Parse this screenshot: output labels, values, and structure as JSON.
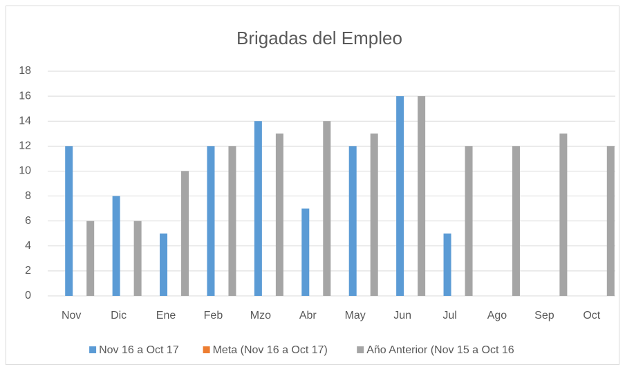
{
  "chart_data": {
    "type": "bar",
    "title": "Brigadas del Empleo",
    "categories": [
      "Nov",
      "Dic",
      "Ene",
      "Feb",
      "Mzo",
      "Abr",
      "May",
      "Jun",
      "Jul",
      "Ago",
      "Sep",
      "Oct"
    ],
    "series": [
      {
        "name": "Nov 16 a Oct 17",
        "color": "#5b9bd5",
        "values": [
          12,
          8,
          5,
          12,
          14,
          7,
          12,
          16,
          5,
          null,
          null,
          null
        ]
      },
      {
        "name": "Meta (Nov 16 a Oct 17)",
        "color": "#ed7d31",
        "values": [
          null,
          null,
          null,
          null,
          null,
          null,
          null,
          null,
          null,
          null,
          null,
          null
        ]
      },
      {
        "name": "Año Anterior (Nov 15 a Oct 16",
        "color": "#a5a5a5",
        "values": [
          6,
          6,
          10,
          12,
          13,
          14,
          13,
          16,
          12,
          12,
          13,
          12
        ]
      }
    ],
    "ylim": [
      0,
      18
    ],
    "yticks": [
      0,
      2,
      4,
      6,
      8,
      10,
      12,
      14,
      16,
      18
    ],
    "grid": true,
    "legend": "bottom"
  }
}
